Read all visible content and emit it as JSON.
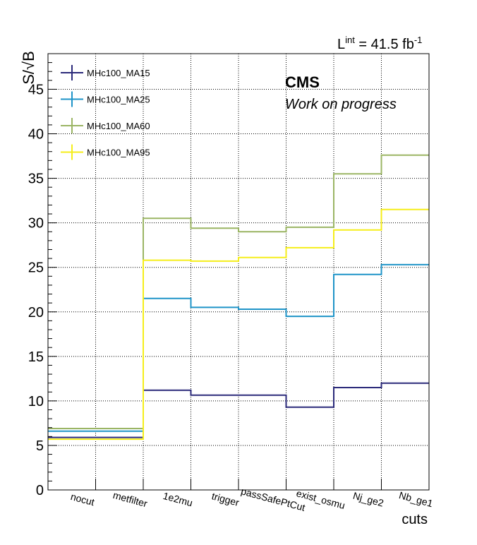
{
  "chart_data": {
    "type": "line",
    "step": true,
    "categories": [
      "nocut",
      "metfilter",
      "1e2mu",
      "trigger",
      "passSafePtCut",
      "exist_osmu",
      "Nj_ge2",
      "Nb_ge1"
    ],
    "ylabel": "S/√B",
    "xlabel": "cuts",
    "ylim": [
      0,
      49
    ],
    "yticks": [
      0,
      5,
      10,
      15,
      20,
      25,
      30,
      35,
      40,
      45
    ],
    "grid": true,
    "legend": "top-left",
    "lumi": {
      "base": "L",
      "sup": "int",
      "value": " = 41.5 fb",
      "unit_sup": "-1"
    },
    "experiment": "CMS",
    "status": "Work on progress",
    "series": [
      {
        "name": "MHc100_MA15",
        "color": "#2b2a7a",
        "values": [
          5.9,
          5.9,
          11.2,
          10.65,
          10.65,
          9.3,
          11.5,
          12.0
        ]
      },
      {
        "name": "MHc100_MA25",
        "color": "#1f94c8",
        "values": [
          6.6,
          6.6,
          21.5,
          20.5,
          20.3,
          19.5,
          24.2,
          25.3
        ]
      },
      {
        "name": "MHc100_MA60",
        "color": "#9bb564",
        "values": [
          6.9,
          6.9,
          30.5,
          29.4,
          29.0,
          29.5,
          35.5,
          37.6
        ]
      },
      {
        "name": "MHc100_MA95",
        "color": "#f5ee1a",
        "values": [
          5.7,
          5.7,
          25.8,
          25.7,
          26.1,
          27.2,
          29.2,
          31.5
        ]
      }
    ]
  }
}
